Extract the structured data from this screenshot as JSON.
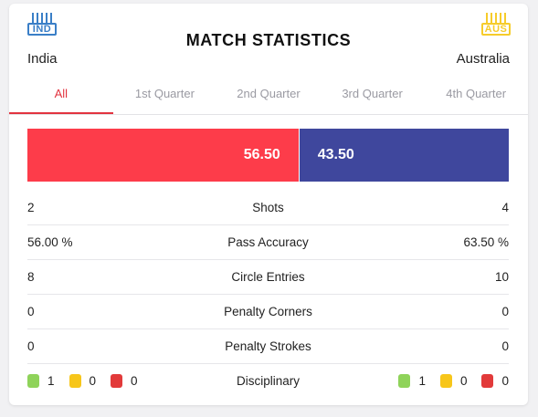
{
  "header": {
    "title": "MATCH STATISTICS",
    "home": {
      "code": "IND",
      "name": "India",
      "stripe_color": "#3a7fc7"
    },
    "away": {
      "code": "AUS",
      "name": "Australia",
      "stripe_color": "#f6cc2b"
    }
  },
  "tabs": [
    "All",
    "1st Quarter",
    "2nd Quarter",
    "3rd Quarter",
    "4th Quarter"
  ],
  "active_tab": "All",
  "possession": {
    "home": "56.50",
    "away": "43.50",
    "home_fraction": 0.565,
    "home_color": "#fd3c4a",
    "away_color": "#3f479d"
  },
  "stats": [
    {
      "label": "Shots",
      "home": "2",
      "away": "4"
    },
    {
      "label": "Pass Accuracy",
      "home": "56.00 %",
      "away": "63.50 %"
    },
    {
      "label": "Circle Entries",
      "home": "8",
      "away": "10"
    },
    {
      "label": "Penalty Corners",
      "home": "0",
      "away": "0"
    },
    {
      "label": "Penalty Strokes",
      "home": "0",
      "away": "0"
    }
  ],
  "disciplinary": {
    "label": "Disciplinary",
    "home": {
      "green": "1",
      "yellow": "0",
      "red": "0"
    },
    "away": {
      "green": "1",
      "yellow": "0",
      "red": "0"
    },
    "colors": {
      "green": "#8fd35a",
      "yellow": "#f7c61a",
      "red": "#e23a3a"
    }
  }
}
